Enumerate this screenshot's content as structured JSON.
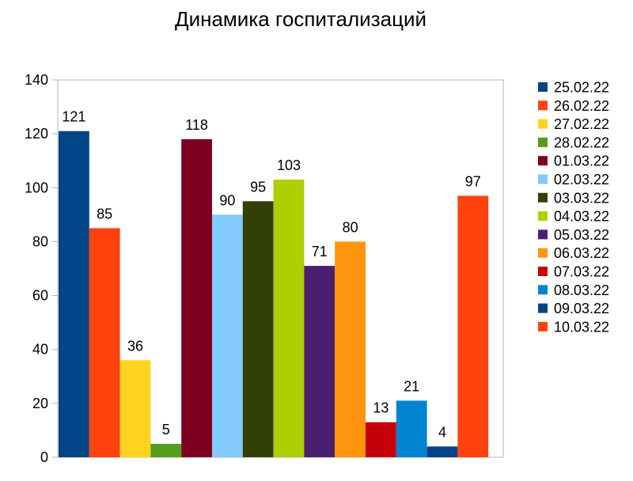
{
  "chart_data": {
    "type": "bar",
    "title": "Динамика госпитализаций",
    "xlabel": "",
    "ylabel": "",
    "ylim": [
      0,
      140
    ],
    "yticks": [
      0,
      20,
      40,
      60,
      80,
      100,
      120,
      140
    ],
    "grid": false,
    "legend": "right",
    "series": [
      {
        "name": "25.02.22",
        "value": 121,
        "color": "#004586"
      },
      {
        "name": "26.02.22",
        "value": 85,
        "color": "#ff420e"
      },
      {
        "name": "27.02.22",
        "value": 36,
        "color": "#ffd320"
      },
      {
        "name": "28.02.22",
        "value": 5,
        "color": "#579d1c"
      },
      {
        "name": "01.03.22",
        "value": 118,
        "color": "#7e0021"
      },
      {
        "name": "02.03.22",
        "value": 90,
        "color": "#83caff"
      },
      {
        "name": "03.03.22",
        "value": 95,
        "color": "#314004"
      },
      {
        "name": "04.03.22",
        "value": 103,
        "color": "#aecf00"
      },
      {
        "name": "05.03.22",
        "value": 71,
        "color": "#4b1f6f"
      },
      {
        "name": "06.03.22",
        "value": 80,
        "color": "#ff950e"
      },
      {
        "name": "07.03.22",
        "value": 13,
        "color": "#c5000b"
      },
      {
        "name": "08.03.22",
        "value": 21,
        "color": "#0084d1"
      },
      {
        "name": "09.03.22",
        "value": 4,
        "color": "#004586"
      },
      {
        "name": "10.03.22",
        "value": 97,
        "color": "#ff420e"
      }
    ]
  }
}
